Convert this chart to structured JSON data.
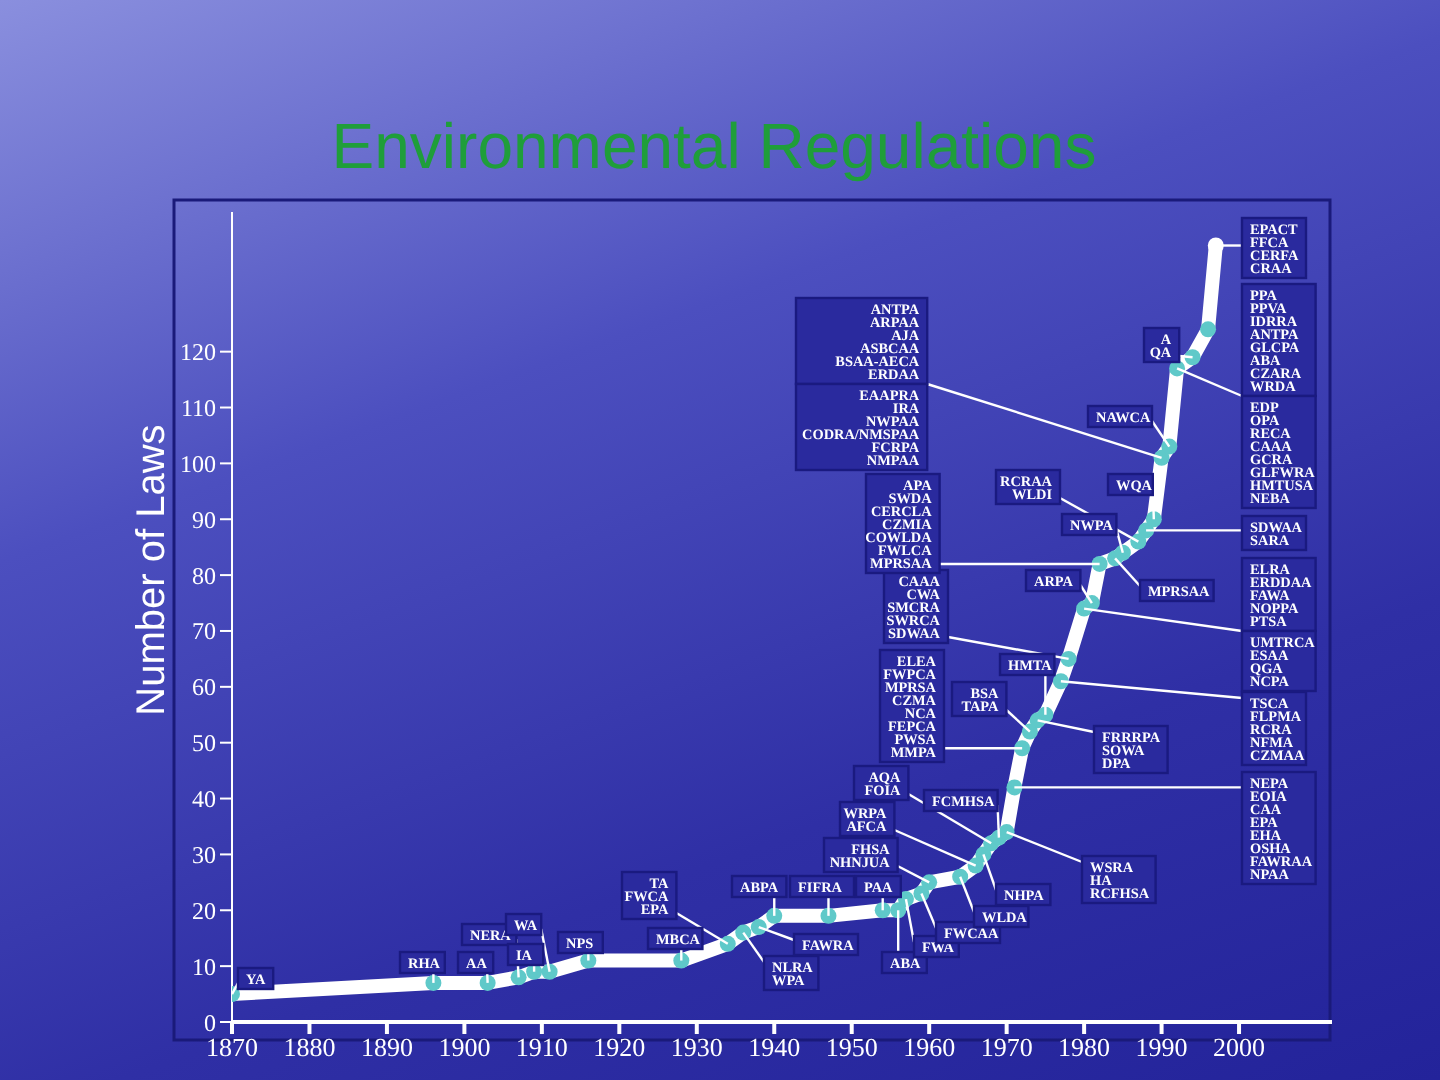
{
  "chart_data": {
    "type": "line",
    "title": "Environmental Regulations",
    "ylabel": "Number of Laws",
    "x": [
      1870,
      1896,
      1903,
      1907,
      1909,
      1911,
      1916,
      1928,
      1934,
      1936,
      1938,
      1940,
      1947,
      1954,
      1956,
      1957,
      1959,
      1960,
      1964,
      1966,
      1967,
      1968,
      1969,
      1970,
      1971,
      1972,
      1973,
      1974,
      1975,
      1977,
      1978,
      1980,
      1981,
      1982,
      1984,
      1985,
      1987,
      1988,
      1989,
      1990,
      1991,
      1992,
      1994,
      1996,
      1997
    ],
    "series": [
      {
        "color": "#ffffff",
        "values": [
          5,
          7,
          7,
          8,
          9,
          9,
          11,
          11,
          14,
          16,
          17,
          19,
          19,
          20,
          20,
          22,
          23,
          25,
          26,
          28,
          30,
          32,
          33,
          34,
          42,
          49,
          52,
          54,
          55,
          61,
          65,
          74,
          75,
          82,
          83,
          84,
          86,
          88,
          90,
          101,
          103,
          117,
          119,
          124,
          139
        ],
        "colors": [
          "#5fc9c9",
          "#5fc9c9",
          "#5fc9c9",
          "#5fc9c9",
          "#5fc9c9",
          "#5fc9c9",
          "#5fc9c9",
          "#5fc9c9",
          "#5fc9c9",
          "#5fc9c9",
          "#5fc9c9",
          "#5fc9c9",
          "#5fc9c9",
          "#5fc9c9",
          "#5fc9c9",
          "#5fc9c9",
          "#5fc9c9",
          "#5fc9c9",
          "#5fc9c9",
          "#5fc9c9",
          "#5fc9c9",
          "#5fc9c9",
          "#5fc9c9",
          "#5fc9c9",
          "#5fc9c9",
          "#5fc9c9",
          "#5fc9c9",
          "#5fc9c9",
          "#5fc9c9",
          "#5fc9c9",
          "#5fc9c9",
          "#5fc9c9",
          "#5fc9c9",
          "#5fc9c9",
          "#5fc9c9",
          "#5fc9c9",
          "#5fc9c9",
          "#5fc9c9",
          "#5fc9c9",
          "#5fc9c9",
          "#5fc9c9",
          "#5fc9c9",
          "#5fc9c9",
          "#5fc9c9",
          "#ffffff"
        ]
      }
    ],
    "xlim": [
      1870,
      2012
    ],
    "ylim": [
      0,
      145
    ],
    "xticks": [
      1870,
      1880,
      1890,
      1900,
      1910,
      1920,
      1930,
      1940,
      1950,
      1960,
      1970,
      1980,
      1990,
      2000
    ],
    "yticks": [
      0,
      10,
      20,
      30,
      40,
      50,
      60,
      70,
      80,
      90,
      100,
      110,
      120
    ],
    "marker": "circle",
    "annotations": [
      {
        "text": "YA",
        "x": 1870,
        "y": 5
      },
      {
        "text": "RHA",
        "x": 1896,
        "y": 7
      },
      {
        "text": "AA",
        "x": 1903,
        "y": 7
      },
      {
        "text": "NERA",
        "x": 1907,
        "y": 8
      },
      {
        "text": "IA",
        "x": 1909,
        "y": 9
      },
      {
        "text": "WA",
        "x": 1911,
        "y": 9
      },
      {
        "text": "NPS",
        "x": 1916,
        "y": 11
      },
      {
        "text": "MBCA",
        "x": 1928,
        "y": 11
      },
      {
        "text": "TA\nFWCA\nEPA",
        "x": 1934,
        "y": 14
      },
      {
        "text": "NLRA\nWPA",
        "x": 1936,
        "y": 16
      },
      {
        "text": "ABPA",
        "x": 1940,
        "y": 19
      },
      {
        "text": "FAWRA",
        "x": 1938,
        "y": 17
      },
      {
        "text": "FIFRA",
        "x": 1947,
        "y": 19
      },
      {
        "text": "PAA",
        "x": 1954,
        "y": 20
      },
      {
        "text": "ABA",
        "x": 1956,
        "y": 20
      },
      {
        "text": "FWA",
        "x": 1957,
        "y": 22
      },
      {
        "text": "FWCAA",
        "x": 1959,
        "y": 23
      },
      {
        "text": "WLDA",
        "x": 1964,
        "y": 26
      },
      {
        "text": "FHSA\nNHNJUA",
        "x": 1960,
        "y": 25
      },
      {
        "text": "WRPA\nAFCA",
        "x": 1966,
        "y": 28
      },
      {
        "text": "AQA\nFOIA",
        "x": 1968,
        "y": 32
      },
      {
        "text": "FCMHSA",
        "x": 1969,
        "y": 33
      },
      {
        "text": "NHPA",
        "x": 1967,
        "y": 30
      },
      {
        "text": "WSRA\nHA\nRCFHSA",
        "x": 1970,
        "y": 34
      },
      {
        "text": "NEPA\nEOIA\nCAA\nEPA\nEHA\nOSHA\nFAWRAA\nNPAA",
        "x": 1971,
        "y": 42
      },
      {
        "text": "FRRRPA\nSOWA\nDPA",
        "x": 1974,
        "y": 54
      },
      {
        "text": "BSA\nTAPA",
        "x": 1973,
        "y": 52
      },
      {
        "text": "ELEA\nFWPCA\nMPRSA\nCZMA\nNCA\nFEPCA\nPWSA\nMMPA",
        "x": 1972,
        "y": 49
      },
      {
        "text": "HMTA",
        "x": 1975,
        "y": 55
      },
      {
        "text": "TSCA\nFLPMA\nRCRA\nNFMA\nCZMAA",
        "x": 1977,
        "y": 61
      },
      {
        "text": "CAAA\nCWA\nSMCRA\nSWRCA\nSDWAA",
        "x": 1978,
        "y": 65
      },
      {
        "text": "ARPA",
        "x": 1981,
        "y": 75
      },
      {
        "text": "ELRA\nERDDAA\nFAWA\nNOPPA\nPTSA",
        "x": 1980,
        "y": 74
      },
      {
        "text": "UMTRCA\nESAA\nQGA\nNCPA",
        "x": 1980,
        "y": 74
      },
      {
        "text": "MPRSAA",
        "x": 1984,
        "y": 83
      },
      {
        "text": "NWPA",
        "x": 1985,
        "y": 84
      },
      {
        "text": "APA\nSWDA\nCERCLA\nCZMIA\nCOWLDA\nFWLCA\nMPRSAA",
        "x": 1982,
        "y": 82
      },
      {
        "text": "RCRAA\nWLDI",
        "x": 1987,
        "y": 86
      },
      {
        "text": "WQA",
        "x": 1989,
        "y": 90
      },
      {
        "text": "SDWAA\nSARA",
        "x": 1988,
        "y": 88
      },
      {
        "text": "ANTPA\nARPAA\nAJA\nASBCAA\nBSAA-AECA\nERDAA",
        "x": 1990,
        "y": 101
      },
      {
        "text": "EAAPRA\nIRA\nNWPAA\nCODRA/NMSPAA\nFCRPA\nNMPAA",
        "x": 1990,
        "y": 101
      },
      {
        "text": "NAWCA",
        "x": 1991,
        "y": 103
      },
      {
        "text": "A\nQA",
        "x": 1994,
        "y": 119
      },
      {
        "text": "PPA\nPPVA\nIDRRA\nANTPA\nGLCPA\nABA\nCZARA\nWRDA",
        "x": 1992,
        "y": 117
      },
      {
        "text": "EDP\nOPA\nRECA\nCAAA\nGCRA\nGLFWRA\nHMTUSA\nNEBA",
        "x": 1992,
        "y": 117
      },
      {
        "text": "EPACT\nFFCA\nCERFA\nCRAA",
        "x": 1997,
        "y": 139
      }
    ]
  }
}
